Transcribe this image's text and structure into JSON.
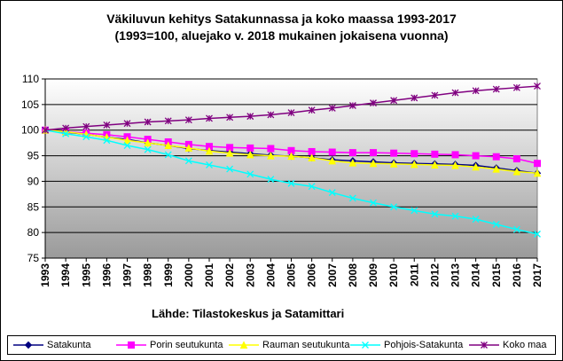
{
  "chart_data": {
    "type": "line",
    "title": "Väkiluvun kehitys Satakunnassa ja koko maassa 1993-2017",
    "subtitle": "(1993=100, aluejako v. 2018 mukainen jokaisena vuonna)",
    "x": [
      "1993",
      "1994",
      "1995",
      "1996",
      "1997",
      "1998",
      "1999",
      "2000",
      "2001",
      "2002",
      "2003",
      "2004",
      "2005",
      "2006",
      "2007",
      "2008",
      "2009",
      "2010",
      "2011",
      "2012",
      "2013",
      "2014",
      "2015",
      "2016",
      "2017"
    ],
    "ylim": [
      75,
      110
    ],
    "yticks": [
      75,
      80,
      85,
      90,
      95,
      100,
      105,
      110
    ],
    "grid": true,
    "plot_background": "gradient white to gray",
    "legend_position": "bottom",
    "series": [
      {
        "name": "Satakunta",
        "color": "#000080",
        "marker": "diamond",
        "values": [
          100,
          99.6,
          99.2,
          98.6,
          98.2,
          97.5,
          97.0,
          96.4,
          96.0,
          95.7,
          95.4,
          95.1,
          94.9,
          94.6,
          94.2,
          94.0,
          93.8,
          93.6,
          93.5,
          93.4,
          93.3,
          93.1,
          92.6,
          92.1,
          91.6
        ]
      },
      {
        "name": "Porin seutukunta",
        "color": "#FF00FF",
        "marker": "square",
        "values": [
          100,
          99.7,
          99.4,
          99.1,
          98.7,
          98.2,
          97.7,
          97.2,
          96.8,
          96.6,
          96.5,
          96.4,
          96.0,
          95.8,
          95.7,
          95.6,
          95.6,
          95.5,
          95.4,
          95.3,
          95.2,
          95.0,
          94.8,
          94.4,
          93.5
        ]
      },
      {
        "name": "Rauman seutukunta",
        "color": "#FFFF00",
        "marker": "triangle",
        "values": [
          100,
          99.7,
          99.2,
          98.6,
          98.0,
          97.5,
          97.0,
          96.5,
          95.9,
          95.5,
          95.2,
          95.0,
          94.9,
          94.6,
          94.0,
          93.6,
          93.5,
          93.4,
          93.3,
          93.2,
          93.1,
          92.8,
          92.4,
          91.9,
          91.6
        ]
      },
      {
        "name": "Pohjois-Satakunta",
        "color": "#00FFFF",
        "marker": "x",
        "values": [
          100,
          99.3,
          98.7,
          98.0,
          97.0,
          96.2,
          95.2,
          94.0,
          93.2,
          92.4,
          91.4,
          90.4,
          89.6,
          89.0,
          87.8,
          86.7,
          85.8,
          85.0,
          84.3,
          83.6,
          83.2,
          82.6,
          81.6,
          80.6,
          79.7
        ]
      },
      {
        "name": "Koko maa",
        "color": "#800080",
        "marker": "star",
        "values": [
          100,
          100.4,
          100.7,
          101.0,
          101.3,
          101.6,
          101.8,
          102.0,
          102.3,
          102.5,
          102.7,
          103.0,
          103.4,
          103.9,
          104.3,
          104.8,
          105.3,
          105.8,
          106.3,
          106.8,
          107.3,
          107.7,
          108.0,
          108.3,
          108.6
        ]
      }
    ]
  },
  "source_text": "Lähde: Tilastokeskus ja Satamittari"
}
